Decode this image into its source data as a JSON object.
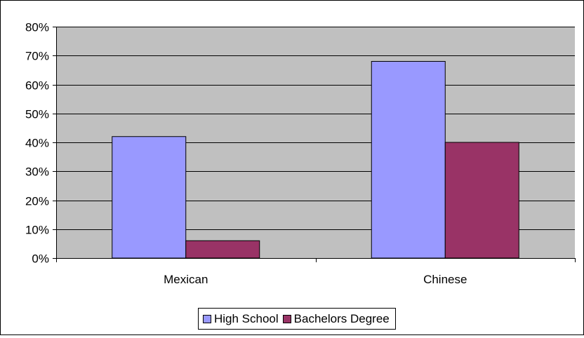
{
  "chart_data": {
    "type": "bar",
    "title": "",
    "xlabel": "",
    "ylabel": "",
    "categories": [
      "Mexican",
      "Chinese"
    ],
    "series": [
      {
        "name": "High School",
        "values": [
          42,
          68
        ],
        "color": "#9999FF"
      },
      {
        "name": "Bachelors Degree",
        "values": [
          6,
          40
        ],
        "color": "#993366"
      }
    ],
    "ylim": [
      0,
      80
    ],
    "ytick_values": [
      0,
      10,
      20,
      30,
      40,
      50,
      60,
      70,
      80
    ],
    "ytick_labels": [
      "0%",
      "10%",
      "20%",
      "30%",
      "40%",
      "50%",
      "60%",
      "70%",
      "80%"
    ],
    "grid": true,
    "plot_background": "#C0C0C0",
    "legend_position": "bottom"
  }
}
